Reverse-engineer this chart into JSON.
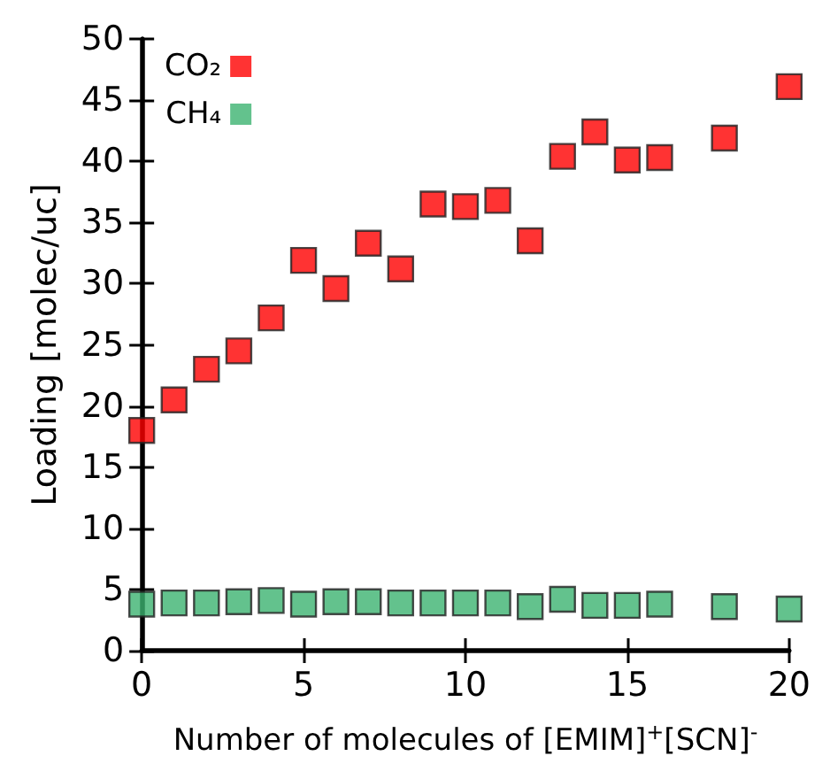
{
  "chart_data": {
    "type": "scatter",
    "xlabel": "Number of molecules of [EMIM]$^{+}$[SCN]$^{-}$",
    "ylabel": "Loading [molec/uc]",
    "x": [
      0,
      1,
      2,
      3,
      4,
      5,
      6,
      7,
      8,
      9,
      10,
      11,
      12,
      13,
      14,
      15,
      16,
      18,
      20
    ],
    "series": [
      {
        "name": "CO₂",
        "color": "#ff0000",
        "values": [
          18,
          20.5,
          23,
          24.5,
          27.2,
          31.9,
          29.6,
          33.3,
          31.2,
          36.5,
          36.3,
          36.8,
          33.5,
          40.4,
          42.4,
          40.1,
          40.3,
          41.9,
          46.1
        ]
      },
      {
        "name": "CH₄",
        "color": "#3cb371",
        "values": [
          3.8,
          3.9,
          3.9,
          4.0,
          4.1,
          3.8,
          4.0,
          4.0,
          3.9,
          3.9,
          3.9,
          3.9,
          3.6,
          4.2,
          3.7,
          3.7,
          3.8,
          3.6,
          3.4
        ]
      }
    ],
    "xlim": [
      0,
      20
    ],
    "xticks": [
      0,
      5,
      10,
      15,
      20
    ],
    "ylim": [
      0,
      50
    ],
    "yticks": [
      0,
      5,
      10,
      15,
      20,
      25,
      30,
      35,
      40,
      45,
      50
    ],
    "marker": "square",
    "legend": "top left",
    "grid": false
  }
}
